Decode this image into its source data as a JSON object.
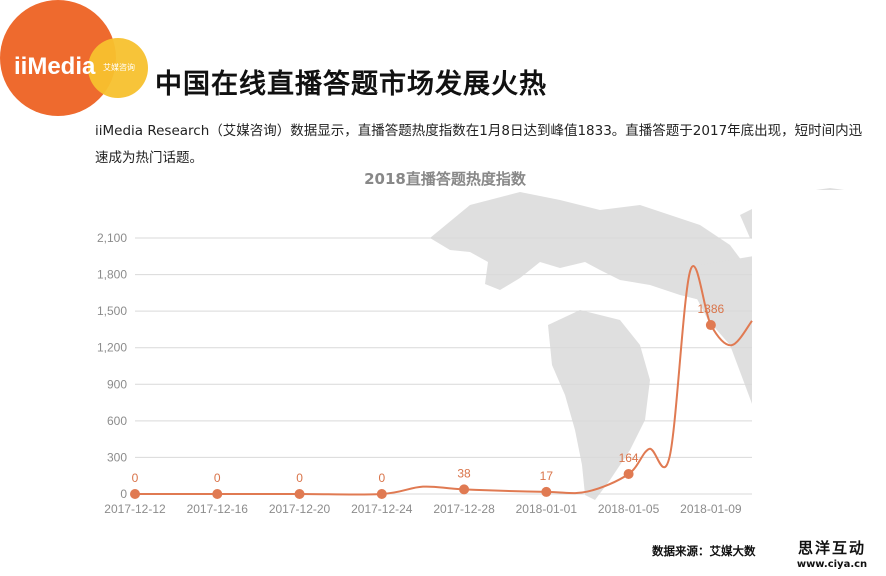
{
  "logo": {
    "main_text": "iiMedia",
    "sub_text": "艾媒咨询",
    "colors": {
      "orange": "#EE6A2E",
      "yellow": "#F7C12E"
    }
  },
  "header": {
    "title": "中国在线直播答题市场发展火热",
    "description": "iiMedia Research（艾媒咨询）数据显示，直播答题热度指数在1月8日达到峰值1833。直播答题于2017年底出现，短时间内迅速成为热门话题。"
  },
  "chart_data": {
    "type": "line",
    "title": "2018直播答题热度指数",
    "x_tick_labels": [
      "2017-12-12",
      "2017-12-16",
      "2017-12-20",
      "2017-12-24",
      "2017-12-28",
      "2018-01-01",
      "2018-01-05",
      "2018-01-09"
    ],
    "y_tick_labels": [
      "0",
      "300",
      "600",
      "900",
      "1,200",
      "1,500",
      "1,800",
      "2,100"
    ],
    "ylim": [
      0,
      2100
    ],
    "grid": true,
    "line_color": "#E07A52",
    "series": [
      {
        "values": [
          {
            "x": "2017-12-12",
            "y": 0,
            "label": "0"
          },
          {
            "x": "2017-12-16",
            "y": 0,
            "label": "0"
          },
          {
            "x": "2017-12-20",
            "y": 0,
            "label": "0"
          },
          {
            "x": "2017-12-24",
            "y": 0,
            "label": "0"
          },
          {
            "x": "2017-12-26",
            "y": 60
          },
          {
            "x": "2017-12-28",
            "y": 38,
            "label": "38"
          },
          {
            "x": "2018-01-01",
            "y": 17,
            "label": "17"
          },
          {
            "x": "2018-01-03",
            "y": 20
          },
          {
            "x": "2018-01-05",
            "y": 164,
            "label": "164"
          },
          {
            "x": "2018-01-06",
            "y": 370
          },
          {
            "x": "2018-01-07",
            "y": 310
          },
          {
            "x": "2018-01-08",
            "y": 1833
          },
          {
            "x": "2018-01-09",
            "y": 1386,
            "label": "1386"
          },
          {
            "x": "2018-01-10",
            "y": 1220
          },
          {
            "x": "2018-01-11",
            "y": 1420
          }
        ]
      }
    ]
  },
  "footer": {
    "source": "数据来源：艾媒大数",
    "brand_cn": "思洋互动",
    "brand_url": "www.ciya.cn"
  }
}
